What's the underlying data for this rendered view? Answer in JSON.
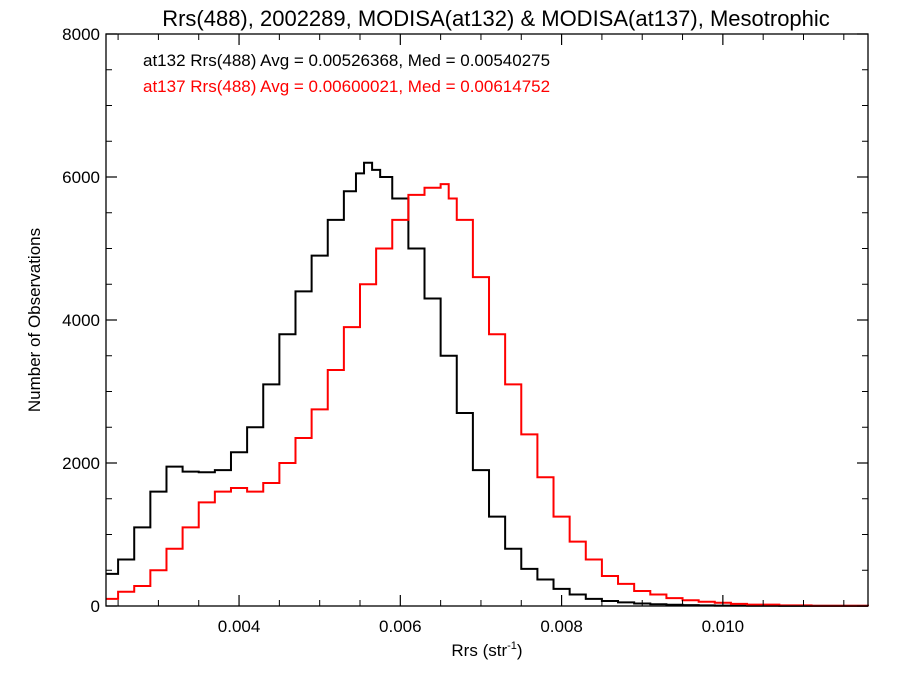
{
  "chart_data": {
    "type": "line",
    "title": "Rrs(488), 2002289, MODISA(at132) & MODISA(at137), Mesotrophic",
    "xlabel_main": "Rrs (str",
    "xlabel_sup": "-1",
    "xlabel_close": ")",
    "ylabel": "Number of Observations",
    "xlim": [
      0.00235,
      0.0118
    ],
    "ylim": [
      0,
      8000
    ],
    "x_ticks": [
      0.004,
      0.006,
      0.008,
      0.01
    ],
    "x_tick_labels": [
      "0.004",
      "0.006",
      "0.008",
      "0.010"
    ],
    "y_ticks": [
      0,
      2000,
      4000,
      6000,
      8000
    ],
    "y_tick_labels": [
      "0",
      "2000",
      "4000",
      "6000",
      "8000"
    ],
    "grid": false,
    "annotations": [
      {
        "text": "at132 Rrs(488) Avg = 0.00526368, Med = 0.00540275",
        "color": "#000000"
      },
      {
        "text": "at137 Rrs(488) Avg = 0.00600021, Med = 0.00614752",
        "color": "#ff0000"
      }
    ],
    "series": [
      {
        "color": "#000000",
        "x": [
          0.00235,
          0.0025,
          0.0027,
          0.0029,
          0.0031,
          0.0033,
          0.0035,
          0.0037,
          0.0039,
          0.0041,
          0.0043,
          0.0045,
          0.0047,
          0.0049,
          0.0051,
          0.0053,
          0.00545,
          0.00555,
          0.00565,
          0.00575,
          0.0059,
          0.0061,
          0.0063,
          0.0065,
          0.0067,
          0.0069,
          0.0071,
          0.0073,
          0.0075,
          0.0077,
          0.0079,
          0.0081,
          0.0083,
          0.0085,
          0.0087,
          0.0089,
          0.0091,
          0.0093,
          0.0095,
          0.0097,
          0.0099,
          0.0103,
          0.0107,
          0.0111,
          0.0118
        ],
        "y": [
          450,
          650,
          1100,
          1600,
          1950,
          1880,
          1870,
          1900,
          2150,
          2500,
          3100,
          3800,
          4400,
          4900,
          5400,
          5800,
          6050,
          6200,
          6100,
          6000,
          5700,
          5000,
          4300,
          3500,
          2700,
          1900,
          1250,
          800,
          520,
          370,
          240,
          160,
          100,
          70,
          50,
          35,
          25,
          18,
          12,
          8,
          5,
          3,
          2,
          1,
          0
        ]
      },
      {
        "color": "#ff0000",
        "x": [
          0.00235,
          0.0025,
          0.0027,
          0.0029,
          0.0031,
          0.0033,
          0.0035,
          0.0037,
          0.0039,
          0.0041,
          0.0043,
          0.0045,
          0.0047,
          0.0049,
          0.0051,
          0.0053,
          0.0055,
          0.0057,
          0.0059,
          0.0061,
          0.0063,
          0.0064,
          0.0065,
          0.0066,
          0.0067,
          0.0069,
          0.0071,
          0.0073,
          0.0075,
          0.0077,
          0.0079,
          0.0081,
          0.0083,
          0.0085,
          0.0087,
          0.0089,
          0.0091,
          0.0093,
          0.0095,
          0.0097,
          0.0099,
          0.0101,
          0.0103,
          0.0107,
          0.0111,
          0.0118
        ],
        "y": [
          100,
          200,
          280,
          500,
          800,
          1100,
          1450,
          1600,
          1650,
          1600,
          1720,
          2000,
          2350,
          2750,
          3300,
          3900,
          4500,
          5000,
          5400,
          5750,
          5850,
          5850,
          5900,
          5700,
          5400,
          4600,
          3800,
          3100,
          2400,
          1800,
          1250,
          900,
          650,
          420,
          310,
          210,
          160,
          110,
          80,
          60,
          45,
          30,
          20,
          8,
          3,
          0
        ]
      }
    ]
  }
}
